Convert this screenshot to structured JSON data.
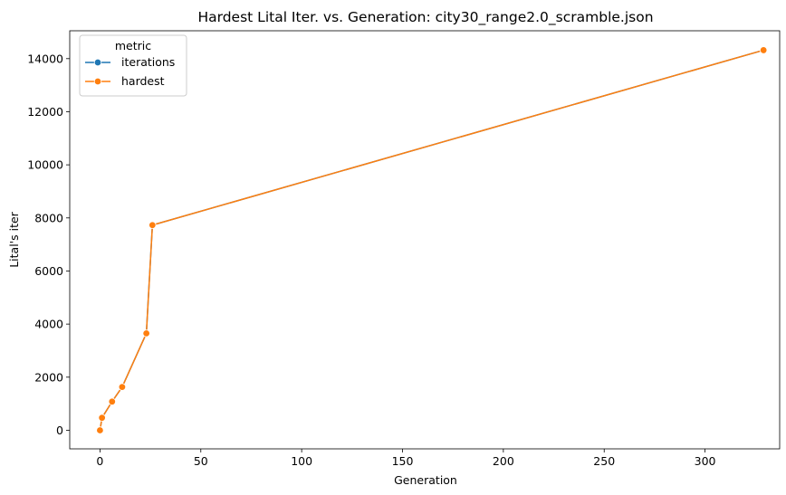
{
  "chart_data": {
    "type": "line",
    "title": "Hardest Lital Iter. vs. Generation: city30_range2.0_scramble.json",
    "xlabel": "Generation",
    "ylabel": "Lital's iter",
    "xlim": [
      -15,
      337
    ],
    "ylim": [
      -700,
      15050
    ],
    "xticks": [
      0,
      50,
      100,
      150,
      200,
      250,
      300
    ],
    "yticks": [
      0,
      2000,
      4000,
      6000,
      8000,
      10000,
      12000,
      14000
    ],
    "grid": false,
    "legend": {
      "title": "metric",
      "placement": "top-left"
    },
    "x": [
      0,
      1,
      6,
      11,
      23,
      26,
      329
    ],
    "series": [
      {
        "name": "iterations",
        "color": "#1f77b4",
        "values": [
          0,
          470,
          1080,
          1630,
          3650,
          7730,
          14320
        ]
      },
      {
        "name": "hardest",
        "color": "#ff7f0e",
        "values": [
          0,
          470,
          1080,
          1630,
          3650,
          7730,
          14320
        ]
      }
    ]
  }
}
